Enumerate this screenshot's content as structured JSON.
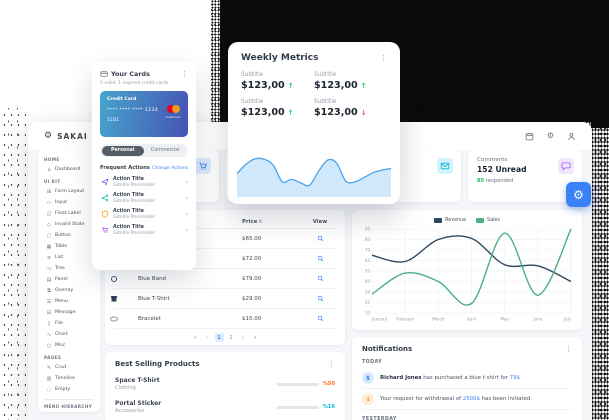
{
  "app": {
    "brand": "SAKAI"
  },
  "topbar": {
    "icons": [
      "calendar",
      "settings",
      "user"
    ]
  },
  "sidebar": {
    "sections": [
      {
        "label": "HOME",
        "items": [
          {
            "label": "Dashboard",
            "glyph": "⌂"
          }
        ]
      },
      {
        "label": "UI KIT",
        "items": [
          {
            "label": "Form Layout",
            "glyph": "⊞"
          },
          {
            "label": "Input",
            "glyph": "▭"
          },
          {
            "label": "Float Label",
            "glyph": "◫"
          },
          {
            "label": "Invalid State",
            "glyph": "◇"
          },
          {
            "label": "Button",
            "glyph": "▢"
          },
          {
            "label": "Table",
            "glyph": "▦"
          },
          {
            "label": "List",
            "glyph": "≡"
          },
          {
            "label": "Tree",
            "glyph": "⌥"
          },
          {
            "label": "Panel",
            "glyph": "▤"
          },
          {
            "label": "Overlay",
            "glyph": "⧉"
          },
          {
            "label": "Menu",
            "glyph": "☰"
          },
          {
            "label": "Message",
            "glyph": "⊟"
          },
          {
            "label": "File",
            "glyph": "▯"
          },
          {
            "label": "Chart",
            "glyph": "∿"
          },
          {
            "label": "Misc",
            "glyph": "○"
          }
        ]
      },
      {
        "label": "PAGES",
        "items": [
          {
            "label": "Crud",
            "glyph": "✎"
          },
          {
            "label": "Timeline",
            "glyph": "▥"
          },
          {
            "label": "Empty",
            "glyph": "◌"
          }
        ]
      },
      {
        "label": "MENU HIERARCHY",
        "items": []
      }
    ]
  },
  "stats": {
    "cards": [
      {
        "label": "",
        "value": "",
        "highlight": "",
        "suffix": "",
        "icon": "cart",
        "icon_color": "#3b82f6",
        "icon_bg": "#dbeafe"
      },
      {
        "label": "",
        "value": "",
        "highlight": "",
        "suffix": "",
        "icon": "",
        "icon_color": "",
        "icon_bg": ""
      },
      {
        "label": "",
        "value": "",
        "highlight": "",
        "suffix": "",
        "icon": "envelope",
        "icon_color": "#06b6d4",
        "icon_bg": "#d3f3fa"
      },
      {
        "label": "Comments",
        "value": "152 Unread",
        "highlight": "85",
        "suffix": "responded",
        "icon": "chat",
        "icon_color": "#a855f7",
        "icon_bg": "#f1e7fb",
        "highlight_color": "#22c55e"
      }
    ]
  },
  "your_cards": {
    "title": "Your Cards",
    "subtitle": "5 valid, 1 expired credit cards",
    "card": {
      "label": "Credit Card",
      "number": "**** **** **** 1234",
      "expiry": "11/21",
      "brand": "mastercard",
      "gradient_from": "#46a4cd",
      "gradient_to": "#4553b4"
    },
    "tabs": [
      "Personal",
      "Commercial"
    ],
    "active_tab": "Personal",
    "actions_header": "Frequent Actions",
    "change_link": "Change Actions",
    "actions": [
      {
        "title": "Action Title",
        "subtitle": "Subtitle Placeholder",
        "icon": "send",
        "color": "#6366f1"
      },
      {
        "title": "Action Title",
        "subtitle": "Subtitle Placeholder",
        "icon": "share",
        "color": "#14b8a6"
      },
      {
        "title": "Action Title",
        "subtitle": "Subtitle Placeholder",
        "icon": "shield",
        "color": "#f59e0b"
      },
      {
        "title": "Action Title",
        "subtitle": "Subtitle Placeholder",
        "icon": "cart",
        "color": "#a855f7"
      }
    ]
  },
  "weekly": {
    "title": "Weekly Metrics",
    "metrics": [
      {
        "label": "Subtitle",
        "value": "$123,00",
        "trend": "up"
      },
      {
        "label": "Subtitle",
        "value": "$123,00",
        "trend": "up"
      },
      {
        "label": "Subtitle",
        "value": "$123,00",
        "trend": "up"
      },
      {
        "label": "Subtitle",
        "value": "$123,00",
        "trend": "down"
      }
    ],
    "trend_up_color": "#22c55e",
    "trend_down_color": "#f43f5e"
  },
  "table": {
    "columns": [
      {
        "label": ""
      },
      {
        "label": ""
      },
      {
        "label": "Price",
        "sortable": true
      },
      {
        "label": "View"
      }
    ],
    "rows": [
      {
        "name": "",
        "price": "$65.00",
        "thumb": ""
      },
      {
        "name": "",
        "price": "$72.00",
        "thumb": ""
      },
      {
        "name": "Blue Band",
        "price": "$79.00",
        "thumb": "band"
      },
      {
        "name": "Blue T-Shirt",
        "price": "$29.00",
        "thumb": "tshirt"
      },
      {
        "name": "Bracelet",
        "price": "$15.00",
        "thumb": "bracelet"
      }
    ],
    "pagination": {
      "first": "«",
      "prev": "‹",
      "pages": [
        "1",
        "2"
      ],
      "active": "1",
      "next": "›",
      "last": "»"
    }
  },
  "best_selling": {
    "title": "Best Selling Products",
    "products": [
      {
        "name": "Space T-Shirt",
        "category": "Clothing",
        "percent": "%50",
        "value": 50,
        "color": "#f97316"
      },
      {
        "name": "Portal Sticker",
        "category": "Accessories",
        "percent": "%16",
        "value": 16,
        "color": "#06b6d4"
      }
    ]
  },
  "notifications": {
    "title": "Notifications",
    "groups": [
      {
        "label": "TODAY",
        "items": [
          {
            "avatar": "$",
            "avatar_bg": "#dbeafe",
            "avatar_color": "#3b82f6",
            "parts": [
              {
                "b": "Richard Jones"
              },
              {
                "t": " has purchased a blue t-shirt for "
              },
              {
                "a": "79$"
              }
            ]
          },
          {
            "avatar": "↓",
            "avatar_bg": "#ffedd5",
            "avatar_color": "#f97316",
            "parts": [
              {
                "t": "Your request for withdrawal of "
              },
              {
                "a": "2500$"
              },
              {
                "t": " has been initiated."
              }
            ]
          }
        ]
      },
      {
        "label": "YESTERDAY",
        "items": []
      }
    ]
  },
  "chart_data": [
    {
      "id": "revenue-line",
      "type": "line",
      "title": "",
      "x": [
        "January",
        "February",
        "March",
        "April",
        "May",
        "June",
        "July"
      ],
      "series": [
        {
          "name": "Revenue",
          "color": "#2f4860",
          "values": [
            65,
            59,
            80,
            81,
            56,
            55,
            40
          ]
        },
        {
          "name": "Sales",
          "color": "#4cae82",
          "values": [
            28,
            48,
            40,
            19,
            86,
            27,
            90
          ]
        }
      ],
      "ylim": [
        10,
        90
      ],
      "ytick_step": 10,
      "grid": true,
      "legend_position": "top",
      "smooth": true
    },
    {
      "id": "weekly-area",
      "type": "area",
      "values": [
        50,
        72,
        85,
        84,
        70,
        30,
        36,
        28,
        22,
        55,
        82,
        75,
        32,
        30,
        40,
        52,
        58,
        62
      ],
      "line_color": "#4da3ea",
      "fill_color": "#cfe8fb",
      "axes": false
    }
  ],
  "theme": {
    "primary": "#3b82f6",
    "text_dark": "#17212f",
    "text_muted": "#6b7280",
    "backdrop": "#0b0b0b"
  }
}
